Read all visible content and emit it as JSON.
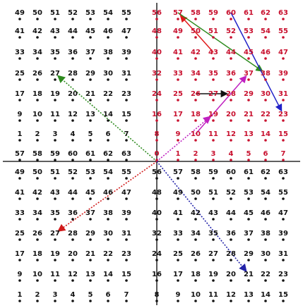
{
  "colors": {
    "black": "#111111",
    "red": "#c8102e",
    "axis": "#000000",
    "arrow_red_solid": "#e01a1a",
    "arrow_green_solid": "#2e8b1f",
    "arrow_blue_solid": "#2222c8",
    "arrow_magenta_solid": "#c020c0",
    "arrow_green_dotted": "#2e8b1f",
    "arrow_red_dotted": "#d01a1a",
    "arrow_magenta_dotted": "#c020c0",
    "arrow_blue_dotted": "#2222a8"
  },
  "quadrants": [
    {
      "id": "top-left",
      "color": "black",
      "rows": [
        [
          "49",
          "50",
          "51",
          "52",
          "53",
          "54",
          "55"
        ],
        [
          "41",
          "42",
          "43",
          "44",
          "45",
          "46",
          "47"
        ],
        [
          "33",
          "34",
          "35",
          "36",
          "37",
          "38",
          "39"
        ],
        [
          "25",
          "26",
          "27",
          "28",
          "29",
          "30",
          "31"
        ],
        [
          "17",
          "18",
          "19",
          "20",
          "21",
          "22",
          "23"
        ],
        [
          "9",
          "10",
          "11",
          "12",
          "13",
          "14",
          "15"
        ],
        [
          "1",
          "2",
          "3",
          "4",
          "5",
          "6",
          "7"
        ]
      ]
    },
    {
      "id": "top-right",
      "color": "red",
      "rows": [
        [
          "56",
          "57",
          "58",
          "59",
          "60",
          "61",
          "62",
          "63"
        ],
        [
          "48",
          "49",
          "50",
          "51",
          "52",
          "53",
          "54",
          "55"
        ],
        [
          "40",
          "41",
          "42",
          "43",
          "44",
          "45",
          "46",
          "47"
        ],
        [
          "32",
          "33",
          "34",
          "35",
          "36",
          "37",
          "38",
          "39"
        ],
        [
          "24",
          "25",
          "26",
          "27",
          "28",
          "29",
          "30",
          "31"
        ],
        [
          "16",
          "17",
          "18",
          "19",
          "20",
          "21",
          "22",
          "23"
        ],
        [
          "8",
          "9",
          "10",
          "11",
          "12",
          "13",
          "14",
          "15"
        ],
        [
          "0",
          "1",
          "2",
          "3",
          "4",
          "5",
          "6",
          "7"
        ]
      ]
    },
    {
      "id": "middle-row-left",
      "color": "black",
      "rows": [
        [
          "57",
          "58",
          "59",
          "60",
          "61",
          "62",
          "63"
        ]
      ]
    },
    {
      "id": "bottom-left",
      "color": "black",
      "rows": [
        [
          "49",
          "50",
          "51",
          "52",
          "53",
          "54",
          "55"
        ],
        [
          "41",
          "42",
          "43",
          "44",
          "45",
          "46",
          "47"
        ],
        [
          "33",
          "34",
          "35",
          "36",
          "37",
          "38",
          "39"
        ],
        [
          "25",
          "26",
          "27",
          "28",
          "29",
          "30",
          "31"
        ],
        [
          "17",
          "18",
          "19",
          "20",
          "21",
          "22",
          "23"
        ],
        [
          "9",
          "10",
          "11",
          "12",
          "13",
          "14",
          "15"
        ],
        [
          "1",
          "2",
          "3",
          "4",
          "5",
          "6",
          "7"
        ]
      ]
    },
    {
      "id": "bottom-right",
      "color": "black",
      "rows": [
        [
          "56",
          "57",
          "58",
          "59",
          "60",
          "61",
          "62",
          "63"
        ],
        [
          "48",
          "49",
          "50",
          "51",
          "52",
          "53",
          "54",
          "55"
        ],
        [
          "40",
          "41",
          "42",
          "43",
          "44",
          "45",
          "46",
          "47"
        ],
        [
          "32",
          "33",
          "34",
          "35",
          "36",
          "37",
          "38",
          "39"
        ],
        [
          "24",
          "25",
          "26",
          "27",
          "28",
          "29",
          "30",
          "31"
        ],
        [
          "16",
          "17",
          "18",
          "19",
          "20",
          "21",
          "22",
          "23"
        ],
        [
          "8",
          "9",
          "10",
          "11",
          "12",
          "13",
          "14",
          "15"
        ]
      ]
    }
  ],
  "arrows": [
    {
      "name": "red-solid-arrow",
      "color": "arrow_red_solid",
      "style": "solid",
      "from_cell": "r-43",
      "to_cell": "r-57"
    },
    {
      "name": "green-solid-arrow",
      "color": "arrow_green_solid",
      "style": "solid",
      "from_cell": "r-57",
      "to_cell": "r-38"
    },
    {
      "name": "blue-solid-arrow",
      "color": "arrow_blue_solid",
      "style": "solid",
      "from_cell": "r-60",
      "to_cell": "r-23"
    },
    {
      "name": "magenta-solid-arrow",
      "color": "arrow_magenta_solid",
      "style": "solid",
      "from_cell": "r-10",
      "to_cell": "r-37"
    },
    {
      "name": "black-solid-arrow-26-28",
      "color": "black",
      "style": "solid",
      "from_cell": "r-26",
      "to_cell": "r-28"
    },
    {
      "name": "green-dotted-arrow",
      "color": "arrow_green_dotted",
      "style": "dotted",
      "from_cell": "origin",
      "to_cell": "tl-27"
    },
    {
      "name": "red-dotted-arrow",
      "color": "arrow_red_dotted",
      "style": "dotted",
      "from_cell": "origin",
      "to_cell": "bl-27"
    },
    {
      "name": "magenta-dotted-arrow",
      "color": "arrow_magenta_dotted",
      "style": "dotted",
      "from_cell": "origin",
      "to_cell": "r-19"
    },
    {
      "name": "blue-dotted-arrow",
      "color": "arrow_blue_dotted",
      "style": "dotted",
      "from_cell": "origin",
      "to_cell": "br-21"
    }
  ]
}
